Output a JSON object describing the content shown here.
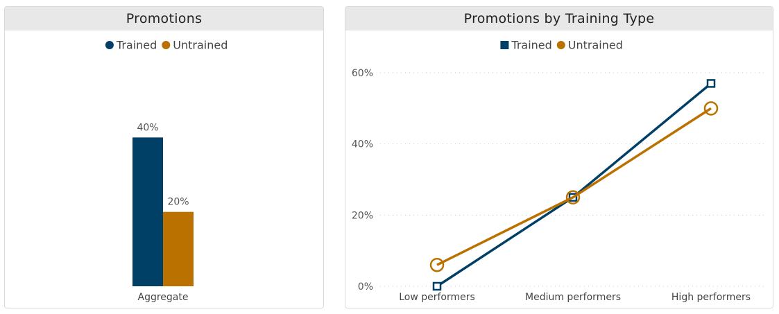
{
  "charts": {
    "left": {
      "title": "Promotions"
    },
    "right": {
      "title": "Promotions by Training Type"
    }
  },
  "chart_data": [
    {
      "type": "bar",
      "title": "Promotions",
      "categories": [
        "Aggregate"
      ],
      "series": [
        {
          "name": "Trained",
          "values": [
            0.4
          ],
          "color": "#003f66"
        },
        {
          "name": "Untrained",
          "values": [
            0.2
          ],
          "color": "#bb7100"
        }
      ],
      "data_labels": [
        "40%",
        "20%"
      ],
      "ylim": [
        0,
        0.6
      ],
      "legend": "top-center",
      "legend_marker": "circle",
      "grid": false
    },
    {
      "type": "line",
      "title": "Promotions by Training Type",
      "categories": [
        "Low performers",
        "Medium performers",
        "High performers"
      ],
      "series": [
        {
          "name": "Trained",
          "values": [
            0.0,
            0.25,
            0.57
          ],
          "color": "#003f66",
          "marker": "square"
        },
        {
          "name": "Untrained",
          "values": [
            0.06,
            0.25,
            0.5
          ],
          "color": "#bb7100",
          "marker": "circle"
        }
      ],
      "yticks": [
        "0%",
        "20%",
        "40%",
        "60%"
      ],
      "ylim": [
        0,
        0.6
      ],
      "legend": "top-center",
      "grid": true
    }
  ]
}
